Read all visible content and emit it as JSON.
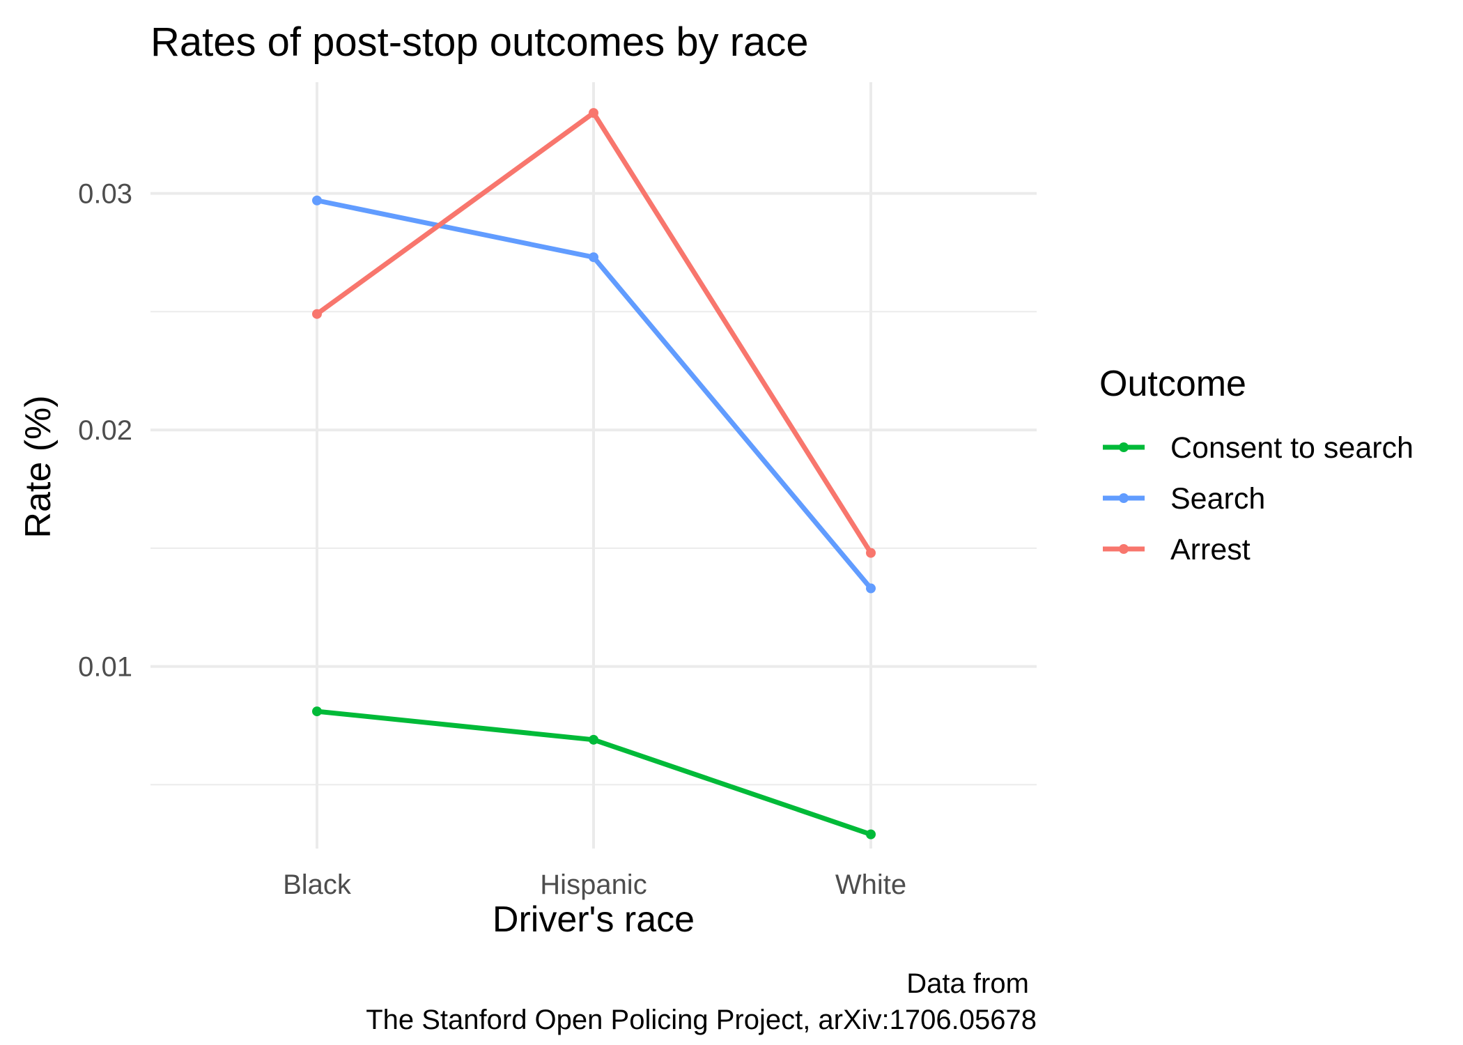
{
  "chart_data": {
    "type": "line",
    "title": "Rates of post-stop outcomes by race",
    "xlabel": "Driver's race",
    "ylabel": "Rate (%)",
    "categories": [
      "Black",
      "Hispanic",
      "White"
    ],
    "y_ticks": [
      0.01,
      0.02,
      0.03
    ],
    "y_tick_labels": [
      "0.01",
      "0.02",
      "0.03"
    ],
    "ylim": [
      0.0023,
      0.0347
    ],
    "grid": true,
    "legend": {
      "title": "Outcome",
      "position": "right"
    },
    "series": [
      {
        "name": "Consent to search",
        "color": "#00ba38",
        "values": [
          0.0081,
          0.0069,
          0.0029
        ]
      },
      {
        "name": "Search",
        "color": "#619cff",
        "values": [
          0.0297,
          0.0273,
          0.0133
        ]
      },
      {
        "name": "Arrest",
        "color": "#f8766d",
        "values": [
          0.0249,
          0.0334,
          0.0148
        ]
      }
    ],
    "caption": [
      "Data from ",
      "The Stanford Open Policing Project, arXiv:1706.05678"
    ]
  }
}
